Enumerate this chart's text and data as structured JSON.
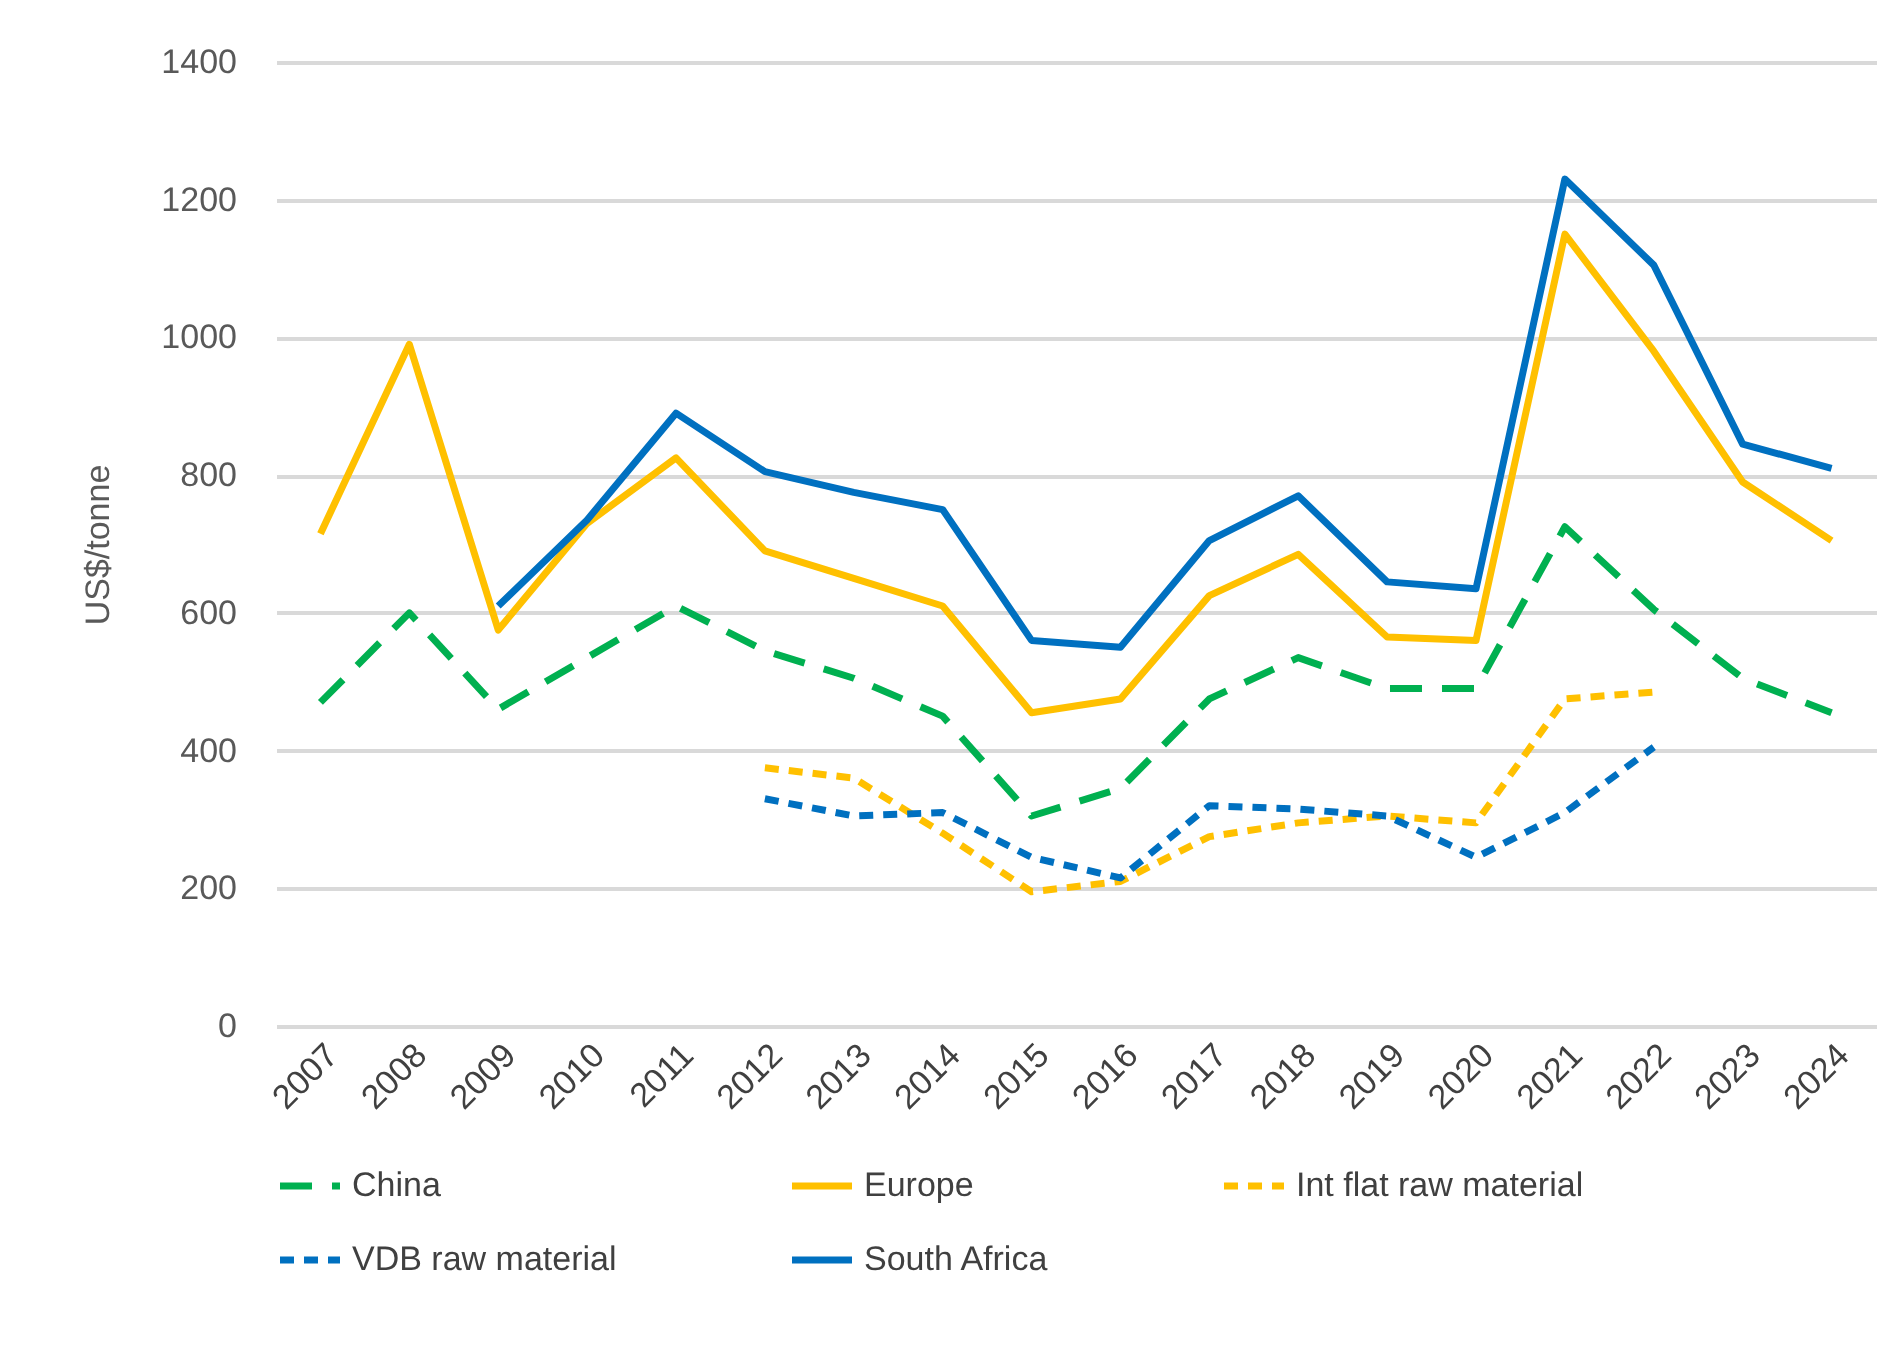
{
  "chart_data": {
    "type": "line",
    "ylabel": "US$/tonne",
    "categories": [
      "2007",
      "2008",
      "2009",
      "2010",
      "2011",
      "2012",
      "2013",
      "2014",
      "2015",
      "2016",
      "2017",
      "2018",
      "2019",
      "2020",
      "2021",
      "2022",
      "2023",
      "2024"
    ],
    "series": [
      {
        "name": "China",
        "color": "#00b050",
        "line_style": "dashed",
        "values": [
          470,
          600,
          460,
          535,
          610,
          545,
          505,
          450,
          305,
          345,
          475,
          535,
          490,
          490,
          725,
          605,
          505,
          455
        ]
      },
      {
        "name": "Europe",
        "color": "#ffc000",
        "line_style": "solid",
        "values": [
          715,
          990,
          575,
          730,
          825,
          690,
          650,
          610,
          455,
          475,
          625,
          685,
          565,
          560,
          1150,
          980,
          790,
          705
        ]
      },
      {
        "name": "Int flat raw material",
        "color": "#ffc000",
        "line_style": "dotted",
        "values": [
          null,
          null,
          null,
          null,
          null,
          375,
          360,
          280,
          195,
          210,
          275,
          295,
          305,
          295,
          475,
          485,
          null,
          null
        ]
      },
      {
        "name": "VDB raw material",
        "color": "#0070c0",
        "line_style": "dotted",
        "values": [
          null,
          null,
          null,
          null,
          null,
          330,
          305,
          310,
          245,
          215,
          320,
          315,
          305,
          245,
          310,
          405,
          null,
          null
        ]
      },
      {
        "name": "South Africa",
        "color": "#0070c0",
        "line_style": "solid",
        "values": [
          null,
          null,
          610,
          735,
          890,
          805,
          775,
          750,
          560,
          550,
          705,
          770,
          645,
          635,
          1230,
          1105,
          845,
          810
        ]
      }
    ],
    "ylim": [
      0,
      1400
    ],
    "yticks": [
      0,
      200,
      400,
      600,
      800,
      1000,
      1200,
      1400
    ],
    "grid": "y",
    "legend": "bottom",
    "marker": "none"
  }
}
